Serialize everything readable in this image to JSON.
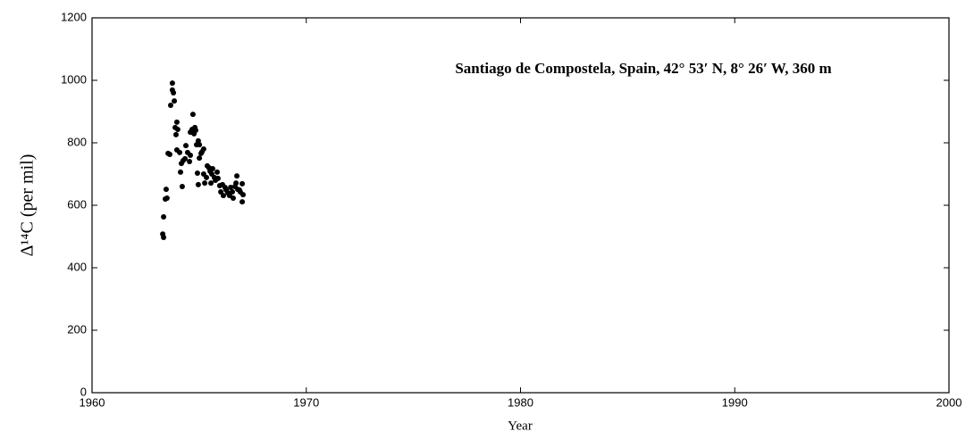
{
  "chart_data": {
    "type": "scatter",
    "annotation": "Santiago de Compostela, Spain, 42° 53′ N, 8° 26′ W, 360 m",
    "xlabel": "Year",
    "ylabel": "Δ¹⁴C (per mil)",
    "color": "#000000",
    "x": [
      1963.3,
      1963.34,
      1963.34,
      1963.42,
      1963.46,
      1963.5,
      1963.55,
      1963.63,
      1963.67,
      1963.75,
      1963.75,
      1963.8,
      1963.84,
      1963.88,
      1963.92,
      1963.96,
      1964.0,
      1963.96,
      1964.09,
      1964.13,
      1964.17,
      1964.25,
      1964.21,
      1964.34,
      1964.38,
      1964.46,
      1964.55,
      1964.59,
      1964.59,
      1964.67,
      1964.71,
      1964.76,
      1964.8,
      1964.84,
      1964.88,
      1964.96,
      1965.01,
      1964.92,
      1964.96,
      1965.01,
      1965.09,
      1965.13,
      1965.21,
      1965.21,
      1965.26,
      1965.34,
      1965.38,
      1965.46,
      1965.51,
      1965.59,
      1965.55,
      1965.63,
      1965.71,
      1965.76,
      1965.84,
      1965.88,
      1965.96,
      1966.01,
      1966.09,
      1966.13,
      1966.21,
      1966.26,
      1966.34,
      1966.42,
      1966.47,
      1966.55,
      1966.59,
      1966.67,
      1966.72,
      1966.76,
      1966.8,
      1966.88,
      1966.92,
      1967.01,
      1967.05,
      1967.01
    ],
    "values": [
      508,
      497,
      563,
      620,
      651,
      623,
      766,
      763,
      920,
      991,
      969,
      960,
      934,
      849,
      826,
      866,
      843,
      777,
      769,
      706,
      734,
      743,
      660,
      749,
      791,
      769,
      740,
      760,
      834,
      843,
      891,
      829,
      849,
      840,
      794,
      806,
      794,
      703,
      666,
      751,
      766,
      771,
      780,
      700,
      671,
      689,
      726,
      720,
      709,
      700,
      671,
      717,
      689,
      680,
      706,
      686,
      663,
      643,
      666,
      631,
      657,
      649,
      640,
      631,
      657,
      643,
      623,
      660,
      671,
      694,
      651,
      649,
      643,
      669,
      634,
      611
    ],
    "xlim": [
      1960,
      2000
    ],
    "xticks": [
      1960,
      1970,
      1980,
      1990,
      2000
    ],
    "ylim": [
      0,
      1200
    ],
    "yticks": [
      0,
      200,
      400,
      600,
      800,
      1000,
      1200
    ],
    "grid": false
  }
}
